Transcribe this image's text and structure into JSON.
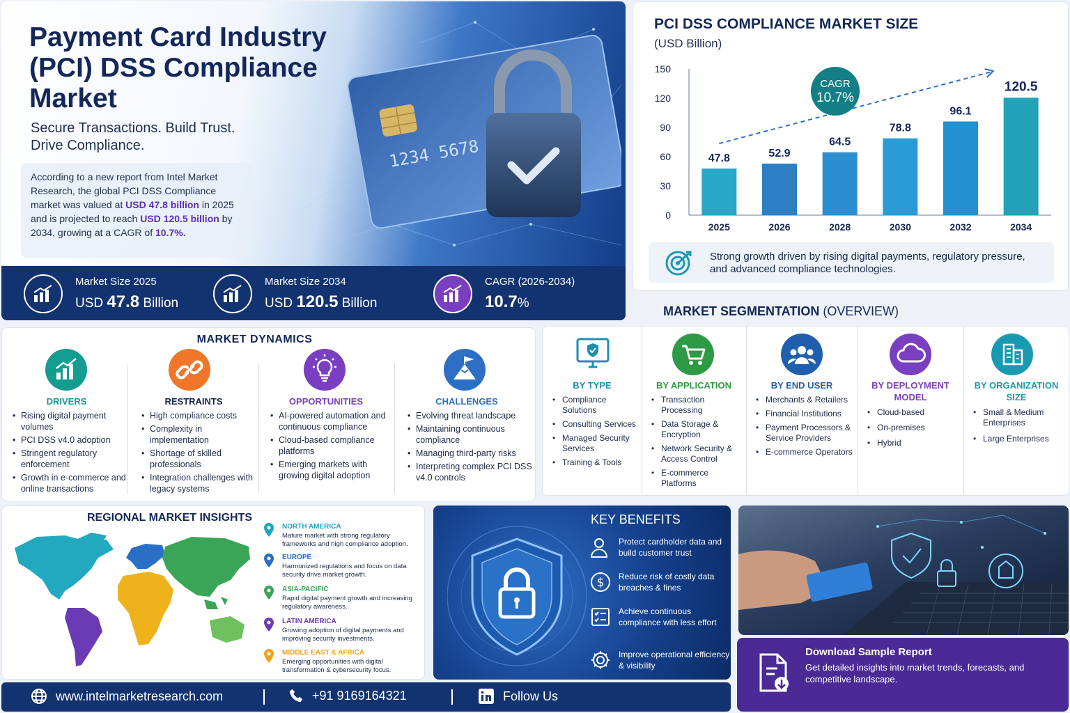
{
  "hero": {
    "title": "Payment Card Industry (PCI) DSS Compliance Market",
    "tagline_1": "Secure Transactions. Build Trust.",
    "tagline_2": "Drive Compliance.",
    "para_1": "According to a new report from Intel Market Research, the global PCI DSS Compliance market was valued at ",
    "para_hl1": "USD 47.8 billion",
    "para_2": " in 2025 and is projected to reach ",
    "para_hl2": "USD 120.5 billion",
    "para_3": " by 2034, growing at a CAGR of ",
    "para_hl3": "10.7%.",
    "card_number": "1234 5678 9012 3456"
  },
  "stats": [
    {
      "label": "Market Size 2025",
      "prefix": "USD",
      "value": "47.8",
      "suffix": "Billion"
    },
    {
      "label": "Market Size 2034",
      "prefix": "USD",
      "value": "120.5",
      "suffix": "Billion"
    },
    {
      "label": "CAGR (2026-2034)",
      "prefix": "",
      "value": "10.7",
      "suffix": "%"
    }
  ],
  "chart_data": {
    "type": "bar",
    "title": "PCI DSS COMPLIANCE MARKET SIZE",
    "subtitle": "(USD Billion)",
    "categories": [
      "2025",
      "2026",
      "2028",
      "2030",
      "2032",
      "2034"
    ],
    "values": [
      47.8,
      52.9,
      64.5,
      78.8,
      96.1,
      120.5
    ],
    "value_labels": [
      "47.8",
      "52.9",
      "64.5",
      "78.8",
      "96.1",
      "120.5"
    ],
    "yticks": [
      "150",
      "120",
      "90",
      "60",
      "30",
      "0"
    ],
    "ylim": [
      0,
      150
    ],
    "cagr_label": "CAGR",
    "cagr_value": "10.7%",
    "bar_colors": [
      "#2aa6c7",
      "#2d7fc2",
      "#2b8ed0",
      "#2a9bd6",
      "#2391d0",
      "#22a3b7"
    ]
  },
  "chart_note": "Strong growth driven by rising digital payments, regulatory pressure, and advanced compliance technologies.",
  "dynamics": {
    "title": "MARKET DYNAMICS",
    "columns": [
      {
        "name": "DRIVERS",
        "color": "#139c8f",
        "items": [
          "Rising digital payment volumes",
          "PCI DSS v4.0 adoption",
          "Stringent regulatory enforcement",
          "Growth in e-commerce and online transactions"
        ]
      },
      {
        "name": "RESTRAINTS",
        "color": "#f0762a",
        "items": [
          "High compliance costs",
          "Complexity in implementation",
          "Shortage of skilled professionals",
          "Integration challenges with legacy systems"
        ]
      },
      {
        "name": "OPPORTUNITIES",
        "color": "#7a3fc0",
        "items": [
          "AI-powered automation and continuous compliance",
          "Cloud-based compliance platforms",
          "Emerging markets with growing digital adoption"
        ]
      },
      {
        "name": "CHALLENGES",
        "color": "#2c6fc4",
        "items": [
          "Evolving threat landscape",
          "Maintaining continuous compliance",
          "Managing third-party risks",
          "Interpreting complex PCI DSS v4.0 controls"
        ]
      }
    ]
  },
  "segmentation": {
    "title_bold": "MARKET SEGMENTATION",
    "title_rest": " (OVERVIEW)",
    "columns": [
      {
        "name": "BY TYPE",
        "color": "#1c8fb0",
        "items": [
          "Compliance Solutions",
          "Consulting Services",
          "Managed Security Services",
          "Training & Tools"
        ]
      },
      {
        "name": "BY APPLICATION",
        "color": "#2e9a45",
        "items": [
          "Transaction Processing",
          "Data Storage & Encryption",
          "Network Security & Access Control",
          "E-commerce Platforms"
        ]
      },
      {
        "name": "BY END USER",
        "color": "#1f5fae",
        "items": [
          "Merchants & Retailers",
          "Financial Institutions",
          "Payment Processors & Service Providers",
          "E-commerce Operators"
        ]
      },
      {
        "name": "BY DEPLOYMENT MODEL",
        "color": "#7a3fc0",
        "items": [
          "Cloud-based",
          "On-premises",
          "Hybrid"
        ]
      },
      {
        "name": "BY ORGANIZATION SIZE",
        "color": "#1a9ab0",
        "items": [
          "Small & Medium Enterprises",
          "Large Enterprises"
        ]
      }
    ]
  },
  "regional": {
    "title": "REGIONAL MARKET INSIGHTS",
    "regions": [
      {
        "name": "NORTH AMERICA",
        "color": "#1fa7bf",
        "desc": "Mature market with strong regulatory frameworks and high compliance adoption."
      },
      {
        "name": "EUROPE",
        "color": "#2a6fc6",
        "desc": "Harmonized regulations and focus on data security drive market growth."
      },
      {
        "name": "ASIA-PACIFIC",
        "color": "#3aa556",
        "desc": "Rapid digital payment growth and increasing regulatory awareness."
      },
      {
        "name": "LATIN AMERICA",
        "color": "#6a3bb4",
        "desc": "Growing adoption of digital payments and improving security investments."
      },
      {
        "name": "MIDDLE EAST & AFRICA",
        "color": "#f0a21c",
        "desc": "Emerging opportunities with digital transformation & cybersecurity focus."
      }
    ]
  },
  "benefits": {
    "title": "KEY BENEFITS",
    "items": [
      {
        "icon": "user-shield-icon",
        "text": "Protect cardholder data and build customer trust"
      },
      {
        "icon": "dollar-icon",
        "text": "Reduce risk of costly data breaches & fines"
      },
      {
        "icon": "checklist-icon",
        "text": "Achieve continuous compliance with less effort"
      },
      {
        "icon": "gear-icon",
        "text": "Improve operational efficiency & visibility"
      }
    ]
  },
  "download": {
    "title": "Download Sample Report",
    "desc": "Get detailed insights into market trends, forecasts, and competitive landscape."
  },
  "footer": {
    "website": "www.intelmarketresearch.com",
    "phone": "+91 9169164321",
    "follow": "Follow Us"
  }
}
